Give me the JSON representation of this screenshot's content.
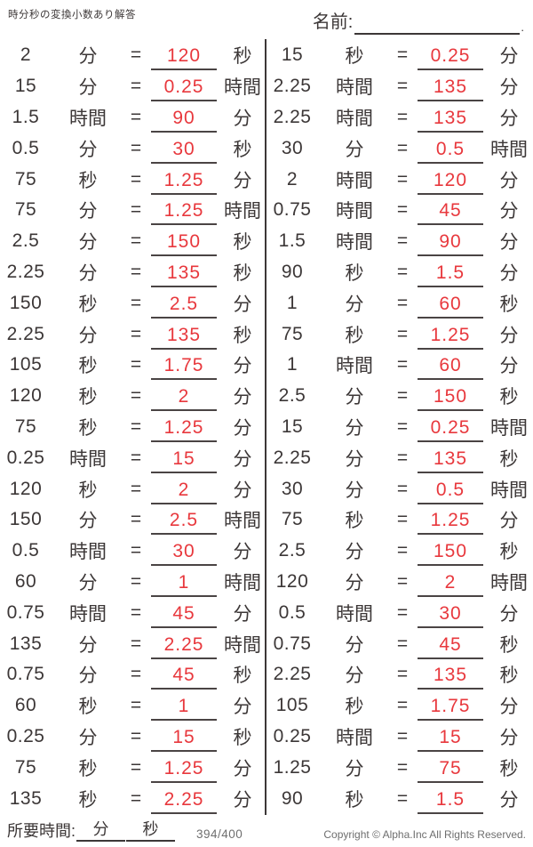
{
  "header": {
    "title": "時分秒の変換小数あり解答",
    "name_label": "名前:",
    "name_period": "."
  },
  "equals_sign": "=",
  "problems": {
    "left": [
      {
        "v": "2",
        "u1": "分",
        "a": "120",
        "u2": "秒"
      },
      {
        "v": "15",
        "u1": "分",
        "a": "0.25",
        "u2": "時間"
      },
      {
        "v": "1.5",
        "u1": "時間",
        "a": "90",
        "u2": "分"
      },
      {
        "v": "0.5",
        "u1": "分",
        "a": "30",
        "u2": "秒"
      },
      {
        "v": "75",
        "u1": "秒",
        "a": "1.25",
        "u2": "分"
      },
      {
        "v": "75",
        "u1": "分",
        "a": "1.25",
        "u2": "時間"
      },
      {
        "v": "2.5",
        "u1": "分",
        "a": "150",
        "u2": "秒"
      },
      {
        "v": "2.25",
        "u1": "分",
        "a": "135",
        "u2": "秒"
      },
      {
        "v": "150",
        "u1": "秒",
        "a": "2.5",
        "u2": "分"
      },
      {
        "v": "2.25",
        "u1": "分",
        "a": "135",
        "u2": "秒"
      },
      {
        "v": "105",
        "u1": "秒",
        "a": "1.75",
        "u2": "分"
      },
      {
        "v": "120",
        "u1": "秒",
        "a": "2",
        "u2": "分"
      },
      {
        "v": "75",
        "u1": "秒",
        "a": "1.25",
        "u2": "分"
      },
      {
        "v": "0.25",
        "u1": "時間",
        "a": "15",
        "u2": "分"
      },
      {
        "v": "120",
        "u1": "秒",
        "a": "2",
        "u2": "分"
      },
      {
        "v": "150",
        "u1": "分",
        "a": "2.5",
        "u2": "時間"
      },
      {
        "v": "0.5",
        "u1": "時間",
        "a": "30",
        "u2": "分"
      },
      {
        "v": "60",
        "u1": "分",
        "a": "1",
        "u2": "時間"
      },
      {
        "v": "0.75",
        "u1": "時間",
        "a": "45",
        "u2": "分"
      },
      {
        "v": "135",
        "u1": "分",
        "a": "2.25",
        "u2": "時間"
      },
      {
        "v": "0.75",
        "u1": "分",
        "a": "45",
        "u2": "秒"
      },
      {
        "v": "60",
        "u1": "秒",
        "a": "1",
        "u2": "分"
      },
      {
        "v": "0.25",
        "u1": "分",
        "a": "15",
        "u2": "秒"
      },
      {
        "v": "75",
        "u1": "秒",
        "a": "1.25",
        "u2": "分"
      },
      {
        "v": "135",
        "u1": "秒",
        "a": "2.25",
        "u2": "分"
      }
    ],
    "right": [
      {
        "v": "15",
        "u1": "秒",
        "a": "0.25",
        "u2": "分"
      },
      {
        "v": "2.25",
        "u1": "時間",
        "a": "135",
        "u2": "分"
      },
      {
        "v": "2.25",
        "u1": "時間",
        "a": "135",
        "u2": "分"
      },
      {
        "v": "30",
        "u1": "分",
        "a": "0.5",
        "u2": "時間"
      },
      {
        "v": "2",
        "u1": "時間",
        "a": "120",
        "u2": "分"
      },
      {
        "v": "0.75",
        "u1": "時間",
        "a": "45",
        "u2": "分"
      },
      {
        "v": "1.5",
        "u1": "時間",
        "a": "90",
        "u2": "分"
      },
      {
        "v": "90",
        "u1": "秒",
        "a": "1.5",
        "u2": "分"
      },
      {
        "v": "1",
        "u1": "分",
        "a": "60",
        "u2": "秒"
      },
      {
        "v": "75",
        "u1": "秒",
        "a": "1.25",
        "u2": "分"
      },
      {
        "v": "1",
        "u1": "時間",
        "a": "60",
        "u2": "分"
      },
      {
        "v": "2.5",
        "u1": "分",
        "a": "150",
        "u2": "秒"
      },
      {
        "v": "15",
        "u1": "分",
        "a": "0.25",
        "u2": "時間"
      },
      {
        "v": "2.25",
        "u1": "分",
        "a": "135",
        "u2": "秒"
      },
      {
        "v": "30",
        "u1": "分",
        "a": "0.5",
        "u2": "時間"
      },
      {
        "v": "75",
        "u1": "秒",
        "a": "1.25",
        "u2": "分"
      },
      {
        "v": "2.5",
        "u1": "分",
        "a": "150",
        "u2": "秒"
      },
      {
        "v": "120",
        "u1": "分",
        "a": "2",
        "u2": "時間"
      },
      {
        "v": "0.5",
        "u1": "時間",
        "a": "30",
        "u2": "分"
      },
      {
        "v": "0.75",
        "u1": "分",
        "a": "45",
        "u2": "秒"
      },
      {
        "v": "2.25",
        "u1": "分",
        "a": "135",
        "u2": "秒"
      },
      {
        "v": "105",
        "u1": "秒",
        "a": "1.75",
        "u2": "分"
      },
      {
        "v": "0.25",
        "u1": "時間",
        "a": "15",
        "u2": "分"
      },
      {
        "v": "1.25",
        "u1": "分",
        "a": "75",
        "u2": "秒"
      },
      {
        "v": "90",
        "u1": "秒",
        "a": "1.5",
        "u2": "分"
      }
    ]
  },
  "footer": {
    "time_label": "所要時間:",
    "min_unit": "分",
    "sec_unit": "秒",
    "page_count": "394/400",
    "copyright": "Copyright © Alpha.Inc All Rights Reserved."
  },
  "colors": {
    "answer_red": "#e8383d",
    "text": "#3c3737",
    "line": "#4a4444",
    "muted": "#6e6e6e"
  }
}
